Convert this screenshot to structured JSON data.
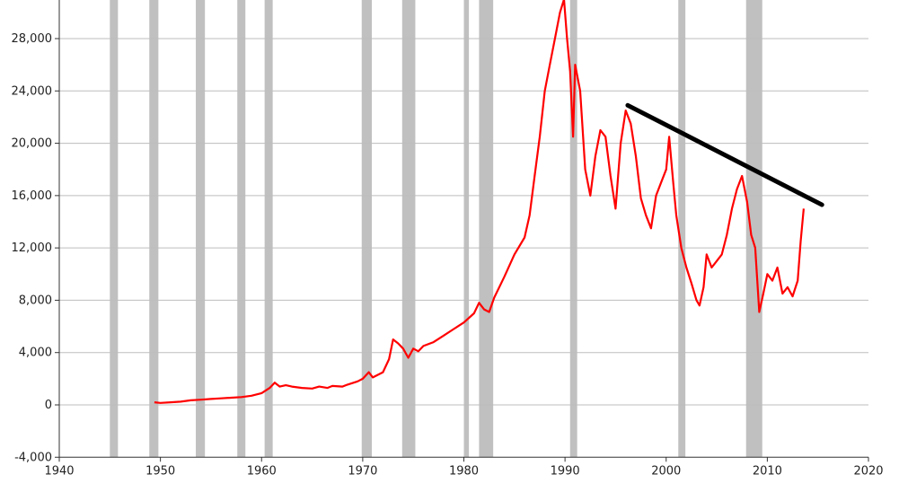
{
  "chart_data": {
    "type": "line",
    "title": "",
    "xlabel": "",
    "ylabel": "",
    "xlim": [
      1940,
      2020
    ],
    "ylim": [
      -4000,
      31000
    ],
    "grid": "horizontal",
    "legend": "none",
    "x_ticks": [
      1940,
      1950,
      1960,
      1970,
      1980,
      1990,
      2000,
      2010,
      2020
    ],
    "y_ticks": [
      -4000,
      0,
      4000,
      8000,
      12000,
      16000,
      20000,
      24000,
      28000
    ],
    "x_tick_labels": [
      "1940",
      "1950",
      "1960",
      "1970",
      "1980",
      "1990",
      "2000",
      "2010",
      "2020"
    ],
    "y_tick_labels": [
      "-4,000",
      "0",
      "4,000",
      "8,000",
      "12,000",
      "16,000",
      "20,000",
      "24,000",
      "28,000"
    ],
    "recession_bands": [
      [
        1945.0,
        1945.8
      ],
      [
        1948.9,
        1949.8
      ],
      [
        1953.5,
        1954.4
      ],
      [
        1957.6,
        1958.4
      ],
      [
        1960.3,
        1961.1
      ],
      [
        1969.9,
        1970.9
      ],
      [
        1973.9,
        1975.2
      ],
      [
        1980.0,
        1980.5
      ],
      [
        1981.5,
        1982.9
      ],
      [
        1990.5,
        1991.2
      ],
      [
        2001.2,
        2001.9
      ],
      [
        2007.9,
        2009.5
      ]
    ],
    "series": [
      {
        "color": "#ff0000",
        "x": [
          1949.4,
          1950.0,
          1951.0,
          1952.0,
          1953.0,
          1954.0,
          1955.0,
          1956.0,
          1957.0,
          1958.0,
          1959.0,
          1960.0,
          1960.8,
          1961.3,
          1961.8,
          1962.4,
          1963.0,
          1964.0,
          1965.0,
          1965.7,
          1966.5,
          1967.0,
          1968.0,
          1968.5,
          1969.5,
          1970.0,
          1970.6,
          1971.0,
          1972.0,
          1972.6,
          1973.0,
          1973.5,
          1974.0,
          1974.5,
          1975.0,
          1975.5,
          1976.0,
          1977.0,
          1978.0,
          1979.0,
          1980.0,
          1981.0,
          1981.5,
          1982.0,
          1982.5,
          1983.0,
          1984.0,
          1985.0,
          1986.0,
          1986.5,
          1987.0,
          1987.5,
          1988.0,
          1988.5,
          1989.0,
          1989.5,
          1989.9,
          1990.2,
          1990.5,
          1990.8,
          1991.0,
          1991.5,
          1992.0,
          1992.5,
          1993.0,
          1993.5,
          1994.0,
          1994.5,
          1995.0,
          1995.5,
          1996.0,
          1996.5,
          1997.0,
          1997.5,
          1998.0,
          1998.5,
          1999.0,
          1999.5,
          2000.0,
          2000.3,
          2000.7,
          2001.0,
          2001.5,
          2002.0,
          2002.5,
          2003.0,
          2003.3,
          2003.7,
          2004.0,
          2004.5,
          2005.0,
          2005.5,
          2006.0,
          2006.5,
          2007.0,
          2007.5,
          2008.0,
          2008.4,
          2008.8,
          2009.2,
          2009.6,
          2010.0,
          2010.5,
          2011.0,
          2011.5,
          2012.0,
          2012.5,
          2013.0,
          2013.3,
          2013.6
        ],
        "y": [
          200,
          150,
          200,
          250,
          350,
          400,
          450,
          500,
          550,
          600,
          700,
          900,
          1300,
          1700,
          1400,
          1500,
          1400,
          1300,
          1250,
          1400,
          1300,
          1450,
          1400,
          1550,
          1800,
          2000,
          2500,
          2100,
          2500,
          3500,
          5000,
          4700,
          4300,
          3600,
          4300,
          4100,
          4500,
          4800,
          5300,
          5800,
          6300,
          7000,
          7800,
          7300,
          7100,
          8200,
          9800,
          11500,
          12800,
          14500,
          17500,
          20500,
          24000,
          26000,
          28000,
          30000,
          31000,
          28000,
          25500,
          20500,
          26000,
          24000,
          18000,
          16000,
          19000,
          21000,
          20500,
          17500,
          15000,
          20000,
          22500,
          21500,
          19000,
          15800,
          14500,
          13500,
          16000,
          17000,
          18000,
          20500,
          17000,
          14500,
          12000,
          10500,
          9300,
          8000,
          7600,
          9000,
          11500,
          10500,
          11000,
          11500,
          13000,
          15000,
          16500,
          17500,
          15500,
          13000,
          12000,
          7100,
          8500,
          10000,
          9500,
          10500,
          8500,
          9000,
          8300,
          9500,
          12500,
          15000
        ]
      }
    ],
    "trendline": {
      "x": [
        1996.2,
        2015.4
      ],
      "y": [
        22900,
        15300
      ],
      "color": "#000000"
    }
  }
}
